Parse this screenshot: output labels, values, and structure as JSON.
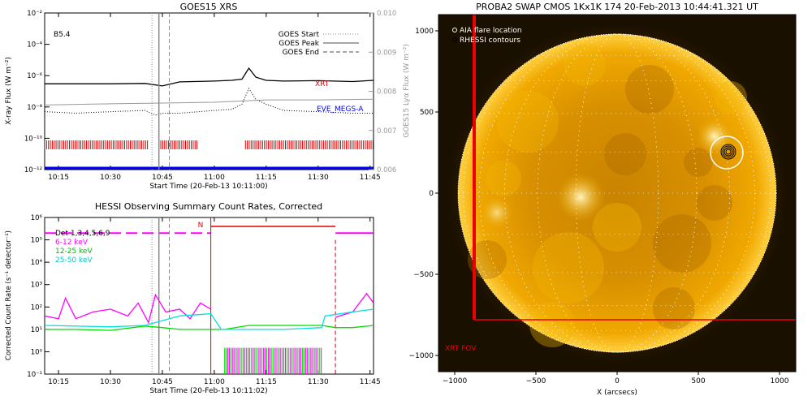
{
  "chart_data": [
    {
      "type": "line",
      "title": "GOES15 XRS",
      "xlabel": "Start Time (20-Feb-13 10:11:00)",
      "ylabel": "X-ray Flux (W m⁻²)",
      "ylabel_right": "GOES15 Lyα Flux (W m⁻²)",
      "x_ticks": [
        "10:15",
        "10:30",
        "10:45",
        "11:00",
        "11:15",
        "11:30",
        "11:45"
      ],
      "x_range": [
        "10:11",
        "11:46"
      ],
      "y_scale": "log",
      "y_range": [
        1e-12,
        0.01
      ],
      "y_ticks": [
        "10⁻¹²",
        "10⁻¹⁰",
        "10⁻⁸",
        "10⁻⁶",
        "10⁻⁴",
        "10⁻²"
      ],
      "y_right_range": [
        0.006,
        0.01
      ],
      "y_right_ticks": [
        "0.006",
        "0.007",
        "0.008",
        "0.009",
        "0.010"
      ],
      "class_label": "B5.4",
      "legend": [
        "GOES Start",
        "GOES Peak",
        "GOES End"
      ],
      "annotations": [
        "XRT",
        "EVE_MEGS-A"
      ],
      "event_times": {
        "start": "10:42",
        "peak": "10:44",
        "end": "10:47"
      },
      "colors": {
        "long": "#000000",
        "short": "#000000",
        "lya": "#999999",
        "xrt": "#dd0000",
        "eve": "#0000ff"
      },
      "series": [
        {
          "id": "long",
          "style": "solid",
          "x": [
            "10:11",
            "10:20",
            "10:30",
            "10:40",
            "10:45",
            "10:50",
            "11:00",
            "11:05",
            "11:08",
            "11:10",
            "11:12",
            "11:15",
            "11:20",
            "11:30",
            "11:40",
            "11:46"
          ],
          "y": [
            3e-07,
            3e-07,
            3e-07,
            3.2e-07,
            2.2e-07,
            4e-07,
            4.5e-07,
            5e-07,
            6e-07,
            3e-06,
            8e-07,
            5e-07,
            4.5e-07,
            4.8e-07,
            4.2e-07,
            5e-07
          ]
        },
        {
          "id": "short",
          "style": "dotted",
          "x": [
            "10:11",
            "10:20",
            "10:30",
            "10:40",
            "10:43",
            "10:45",
            "10:50",
            "11:00",
            "11:05",
            "11:08",
            "11:10",
            "11:12",
            "11:15",
            "11:20",
            "11:30",
            "11:40",
            "11:46"
          ],
          "y": [
            5e-09,
            4e-09,
            5e-09,
            6e-09,
            3e-09,
            4e-09,
            4e-09,
            6e-09,
            7e-09,
            1.5e-08,
            1.5e-07,
            3e-08,
            1.5e-08,
            6e-09,
            5e-09,
            4e-09,
            4e-09
          ]
        },
        {
          "id": "lya",
          "style": "solid",
          "axis": "right",
          "x": [
            "10:11",
            "10:30",
            "10:45",
            "11:00",
            "11:15",
            "11:30",
            "11:46"
          ],
          "y": [
            0.00765,
            0.00768,
            0.0077,
            0.00772,
            0.00778,
            0.00778,
            0.0078
          ]
        }
      ],
      "xrt_coverage": [
        [
          "10:11",
          "10:41"
        ],
        [
          "10:44",
          "10:55"
        ],
        [
          "11:09",
          "11:46"
        ]
      ]
    },
    {
      "type": "line",
      "title": "HESSI Observing Summary Count Rates, Corrected",
      "xlabel": "Start Time (20-Feb-13 10:11:02)",
      "ylabel": "Corrected Count Rate (s⁻¹ detector⁻¹)",
      "x_ticks": [
        "10:15",
        "10:30",
        "10:45",
        "11:00",
        "11:15",
        "11:30",
        "11:45"
      ],
      "x_range": [
        "10:11",
        "11:46"
      ],
      "y_scale": "log",
      "y_range": [
        0.1,
        1000000.0
      ],
      "y_ticks": [
        "10⁻¹",
        "10⁰",
        "10¹",
        "10²",
        "10³",
        "10⁴",
        "10⁵",
        "10⁶"
      ],
      "legend": [
        "Det 1,3,4,5,6,9",
        "6-12 keV",
        "12-25 keV",
        "25-50 keV"
      ],
      "night_label": "N",
      "night_interval": [
        "10:59",
        "11:35"
      ],
      "colors": {
        "6-12 keV": "#ff00ff",
        "12-25 keV": "#00dd00",
        "25-50 keV": "#00e0e0",
        "night": "#dd0000",
        "det": "#ff00ff"
      },
      "series": [
        {
          "name": "6-12 keV",
          "x": [
            "10:11",
            "10:15",
            "10:17",
            "10:20",
            "10:25",
            "10:30",
            "10:35",
            "10:38",
            "10:41",
            "10:43",
            "10:46",
            "10:50",
            "10:53",
            "10:56",
            "10:59",
            "11:32",
            "11:35",
            "11:40",
            "11:44",
            "11:46"
          ],
          "y": [
            40,
            30,
            250,
            30,
            60,
            80,
            40,
            150,
            20,
            350,
            60,
            80,
            30,
            150,
            80,
            null,
            35,
            60,
            400,
            150
          ]
        },
        {
          "name": "12-25 keV",
          "x": [
            "10:11",
            "10:20",
            "10:30",
            "10:40",
            "10:45",
            "10:50",
            "10:59",
            "11:03",
            "11:10",
            "11:20",
            "11:31",
            "11:35",
            "11:40",
            "11:46"
          ],
          "y": [
            10,
            10,
            9,
            14,
            12,
            10,
            10,
            10,
            15,
            15,
            15,
            12,
            12,
            15
          ]
        },
        {
          "name": "25-50 keV",
          "x": [
            "10:11",
            "10:20",
            "10:30",
            "10:40",
            "10:50",
            "10:59",
            "11:02",
            "11:20",
            "11:31",
            "11:32",
            "11:40",
            "11:46"
          ],
          "y": [
            15,
            14,
            13,
            15,
            40,
            50,
            10,
            10,
            12,
            40,
            60,
            80
          ]
        }
      ]
    },
    {
      "type": "heatmap",
      "title": "PROBA2 SWAP CMOS 1Kx1K 174 20-Feb-2013 10:44:41.321 UT",
      "xlabel": "X (arcsecs)",
      "x_ticks": [
        "−1000",
        "−500",
        "0",
        "500",
        "1000"
      ],
      "y_ticks": [
        "−1000",
        "−500",
        "0",
        "500",
        "1000"
      ],
      "x_range": [
        -1100,
        1100
      ],
      "y_range": [
        -1100,
        1100
      ],
      "legend": [
        "AIA flare location",
        "RHESSI contours"
      ],
      "fov_label": "XRT FOV",
      "fov_box": {
        "x": [
          -880,
          1100
        ],
        "y": [
          -780,
          1100
        ]
      },
      "flare_location": [
        680,
        250
      ],
      "colors": {
        "fov": "#ee0000",
        "background": "#1a1000",
        "disk": "#e8a000"
      }
    }
  ]
}
